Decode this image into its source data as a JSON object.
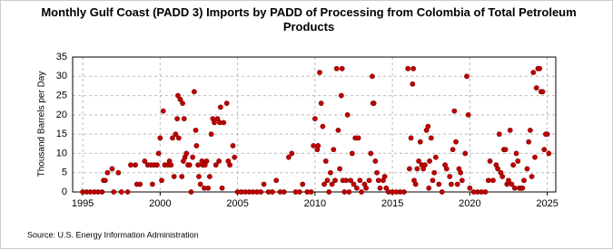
{
  "chart_data": {
    "type": "scatter",
    "title": "Monthly Gulf Coast (PADD 3) Imports by PADD of Processing from Colombia of Total Petroleum Products",
    "y_label": "Thousand Barrels per Day",
    "source": "Source: U.S. Energy Information Administration",
    "color": "#c00000",
    "grid": true,
    "xlim": [
      1994.35,
      2025.55
    ],
    "ylim": [
      0,
      35
    ],
    "xticks": [
      1995,
      2000,
      2005,
      2010,
      2015,
      2020,
      2025
    ],
    "yticks": [
      0,
      5,
      10,
      15,
      20,
      25,
      30,
      35
    ],
    "x": [
      1995,
      1995.25,
      1995.5,
      1995.75,
      1996,
      1996.25,
      1996.35,
      1996.45,
      1996.6,
      1996.9,
      1997.0,
      1997.3,
      1997.5,
      1997.9,
      1998.1,
      1998.4,
      1998.5,
      1998.7,
      1999.0,
      1999.2,
      1999.4,
      1999.5,
      1999.6,
      1999.8,
      1999.9,
      2000.0,
      2000.1,
      2000.2,
      2000.3,
      2000.5,
      2000.6,
      2000.7,
      2000.8,
      2000.9,
      2001.0,
      2001.1,
      2001.15,
      2001.2,
      2001.3,
      2001.4,
      2001.45,
      2001.5,
      2001.55,
      2001.6,
      2001.7,
      2001.8,
      2001.9,
      2002.0,
      2002.1,
      2002.2,
      2002.3,
      2002.35,
      2002.45,
      2002.5,
      2002.6,
      2002.7,
      2002.75,
      2002.85,
      2002.9,
      2003.0,
      2003.1,
      2003.2,
      2003.3,
      2003.4,
      2003.5,
      2003.6,
      2003.7,
      2003.8,
      2003.85,
      2003.9,
      2004.0,
      2004.1,
      2004.3,
      2004.4,
      2004.5,
      2004.7,
      2004.8,
      2005.0,
      2005.25,
      2005.5,
      2005.75,
      2006.0,
      2006.25,
      2006.5,
      2006.7,
      2007.0,
      2007.25,
      2007.5,
      2007.75,
      2008.0,
      2008.3,
      2008.5,
      2008.75,
      2009.0,
      2009.2,
      2009.5,
      2009.75,
      2009.9,
      2010.0,
      2010.15,
      2010.2,
      2010.3,
      2010.4,
      2010.5,
      2010.6,
      2010.7,
      2010.8,
      2010.9,
      2011.0,
      2011.1,
      2011.2,
      2011.3,
      2011.4,
      2011.5,
      2011.6,
      2011.7,
      2011.75,
      2011.8,
      2011.9,
      2012.0,
      2012.1,
      2012.2,
      2012.3,
      2012.4,
      2012.5,
      2012.6,
      2012.7,
      2012.8,
      2012.9,
      2013.0,
      2013.2,
      2013.3,
      2013.5,
      2013.6,
      2013.7,
      2013.75,
      2013.8,
      2013.9,
      2014.0,
      2014.1,
      2014.2,
      2014.4,
      2014.5,
      2014.6,
      2014.75,
      2015.0,
      2015.25,
      2015.5,
      2015.75,
      2016.0,
      2016.1,
      2016.2,
      2016.3,
      2016.35,
      2016.4,
      2016.5,
      2016.6,
      2016.7,
      2016.8,
      2016.9,
      2017.0,
      2017.1,
      2017.2,
      2017.3,
      2017.35,
      2017.4,
      2017.5,
      2017.6,
      2017.7,
      2017.8,
      2018.0,
      2018.2,
      2018.4,
      2018.5,
      2018.7,
      2018.8,
      2018.9,
      2019.0,
      2019.1,
      2019.2,
      2019.3,
      2019.4,
      2019.5,
      2019.7,
      2019.8,
      2019.9,
      2020.0,
      2020.25,
      2020.5,
      2020.75,
      2021.0,
      2021.2,
      2021.3,
      2021.5,
      2021.7,
      2021.8,
      2021.9,
      2022.0,
      2022.1,
      2022.2,
      2022.3,
      2022.4,
      2022.5,
      2022.6,
      2022.7,
      2022.8,
      2022.9,
      2023.0,
      2023.1,
      2023.2,
      2023.3,
      2023.4,
      2023.5,
      2023.7,
      2023.8,
      2023.9,
      2024.0,
      2024.1,
      2024.2,
      2024.3,
      2024.4,
      2024.5,
      2024.6,
      2024.7,
      2024.8,
      2024.9,
      2025.0,
      2025.1
    ],
    "y": [
      0,
      0,
      0,
      0,
      0,
      0,
      3,
      3,
      5,
      6,
      0,
      5,
      0,
      0,
      7,
      7,
      2,
      2,
      8,
      7,
      7,
      2,
      7,
      7,
      10,
      14,
      3,
      21,
      7,
      7,
      8,
      7,
      14,
      4,
      15,
      19,
      25,
      14,
      24,
      4,
      23,
      8,
      19,
      9,
      10,
      7,
      7,
      0,
      9,
      26,
      16,
      12,
      7,
      4,
      2,
      8,
      7,
      1,
      7,
      8,
      1,
      4,
      15,
      19,
      18,
      7,
      19,
      8,
      18,
      22,
      1,
      18,
      23,
      8,
      7,
      12,
      9,
      0,
      0,
      0,
      0,
      0,
      0,
      0,
      2,
      0,
      0,
      3,
      0,
      0,
      9,
      10,
      0,
      0,
      2,
      0,
      0,
      12,
      19,
      11,
      12,
      31,
      23,
      17,
      2,
      8,
      3,
      0,
      5,
      2,
      11,
      3,
      32,
      16,
      6,
      25,
      32,
      3,
      0,
      3,
      20,
      0,
      3,
      10,
      2,
      14,
      1,
      14,
      3,
      0,
      2,
      1,
      3,
      10,
      30,
      23,
      23,
      8,
      5,
      3,
      1,
      3,
      4,
      1,
      0,
      0,
      0,
      0,
      0,
      32,
      6,
      14,
      28,
      32,
      3,
      2,
      6,
      8,
      13,
      7,
      6,
      7,
      16,
      17,
      1,
      8,
      14,
      3,
      5,
      9,
      2,
      0,
      7,
      6,
      4,
      2,
      11,
      21,
      13,
      2,
      6,
      5,
      3,
      10,
      30,
      20,
      1,
      0,
      0,
      0,
      0,
      3,
      8,
      3,
      7,
      6,
      15,
      5,
      4,
      11,
      11,
      2,
      3,
      16,
      2,
      7,
      1,
      10,
      8,
      1,
      1,
      1,
      3,
      6,
      13,
      16,
      4,
      31,
      9,
      27,
      32,
      32,
      26,
      26,
      11,
      15,
      15,
      10
    ]
  }
}
